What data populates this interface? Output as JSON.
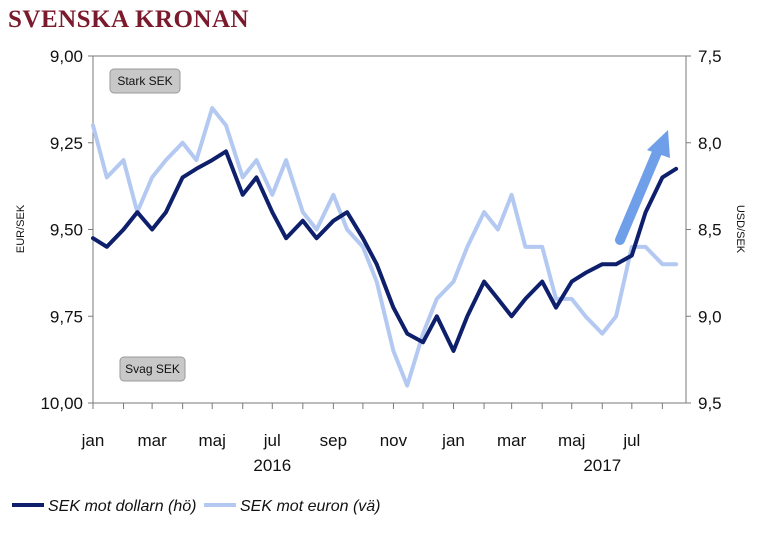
{
  "colors": {
    "title": "#7b1a2c",
    "dollar_series": "#0e1f6b",
    "euro_series": "#b4c9f2",
    "arrow": "#6f9fe8",
    "annotation_box": "#c8c8c8"
  },
  "chart_data": {
    "title": "SVENSKA KRONAN",
    "type": "line",
    "left_axis": {
      "label": "EUR/SEK",
      "ticks": [
        "9,00",
        "9,25",
        "9,50",
        "9,75",
        "10,00"
      ],
      "range": [
        9.0,
        10.0
      ],
      "inverted": true
    },
    "right_axis": {
      "label": "USD/SEK",
      "ticks": [
        "7,5",
        "8,0",
        "8,5",
        "9,0",
        "9,5"
      ],
      "range": [
        7.5,
        9.5
      ],
      "inverted": true
    },
    "x_axis": {
      "month_labels": [
        "jan",
        "mar",
        "maj",
        "jul",
        "sep",
        "nov",
        "jan",
        "mar",
        "maj",
        "jul"
      ],
      "year_labels": [
        "2016",
        "2017"
      ]
    },
    "annotations": [
      "Stark SEK",
      "Svag SEK"
    ],
    "legend": [
      "SEK mot dollarn (hö)",
      "SEK mot euron (vä)"
    ],
    "series": [
      {
        "name": "SEK mot dollarn (hö)",
        "axis": "right",
        "x": [
          "2016-01-01",
          "2016-01-15",
          "2016-02-01",
          "2016-02-15",
          "2016-03-01",
          "2016-03-15",
          "2016-04-01",
          "2016-04-15",
          "2016-05-01",
          "2016-05-15",
          "2016-06-01",
          "2016-06-15",
          "2016-07-01",
          "2016-07-15",
          "2016-08-01",
          "2016-08-15",
          "2016-09-01",
          "2016-09-15",
          "2016-10-01",
          "2016-10-15",
          "2016-11-01",
          "2016-11-15",
          "2016-12-01",
          "2016-12-15",
          "2017-01-01",
          "2017-01-15",
          "2017-02-01",
          "2017-02-15",
          "2017-03-01",
          "2017-03-15",
          "2017-04-01",
          "2017-04-15",
          "2017-05-01",
          "2017-05-15",
          "2017-06-01",
          "2017-06-15",
          "2017-07-01",
          "2017-07-15",
          "2017-08-01",
          "2017-08-15"
        ],
        "values": [
          8.55,
          8.6,
          8.5,
          8.4,
          8.5,
          8.4,
          8.2,
          8.15,
          8.1,
          8.05,
          8.3,
          8.2,
          8.4,
          8.55,
          8.45,
          8.55,
          8.45,
          8.4,
          8.55,
          8.7,
          8.95,
          9.1,
          9.15,
          9.0,
          9.2,
          9.0,
          8.8,
          8.9,
          9.0,
          8.9,
          8.8,
          8.95,
          8.8,
          8.75,
          8.7,
          8.7,
          8.65,
          8.4,
          8.2,
          8.15
        ]
      },
      {
        "name": "SEK mot euron (vä)",
        "axis": "left",
        "x": [
          "2016-01-01",
          "2016-01-15",
          "2016-02-01",
          "2016-02-15",
          "2016-03-01",
          "2016-03-15",
          "2016-04-01",
          "2016-04-15",
          "2016-05-01",
          "2016-05-15",
          "2016-06-01",
          "2016-06-15",
          "2016-07-01",
          "2016-07-15",
          "2016-08-01",
          "2016-08-15",
          "2016-09-01",
          "2016-09-15",
          "2016-10-01",
          "2016-10-15",
          "2016-11-01",
          "2016-11-15",
          "2016-12-01",
          "2016-12-15",
          "2017-01-01",
          "2017-01-15",
          "2017-02-01",
          "2017-02-15",
          "2017-03-01",
          "2017-03-15",
          "2017-04-01",
          "2017-04-15",
          "2017-05-01",
          "2017-05-15",
          "2017-06-01",
          "2017-06-15",
          "2017-07-01",
          "2017-07-15",
          "2017-08-01",
          "2017-08-15"
        ],
        "values": [
          9.2,
          9.35,
          9.3,
          9.45,
          9.35,
          9.3,
          9.25,
          9.3,
          9.15,
          9.2,
          9.35,
          9.3,
          9.4,
          9.3,
          9.45,
          9.5,
          9.4,
          9.5,
          9.55,
          9.65,
          9.85,
          9.95,
          9.8,
          9.7,
          9.65,
          9.55,
          9.45,
          9.5,
          9.4,
          9.55,
          9.55,
          9.7,
          9.7,
          9.75,
          9.8,
          9.75,
          9.55,
          9.55,
          9.6,
          9.6
        ]
      }
    ]
  }
}
